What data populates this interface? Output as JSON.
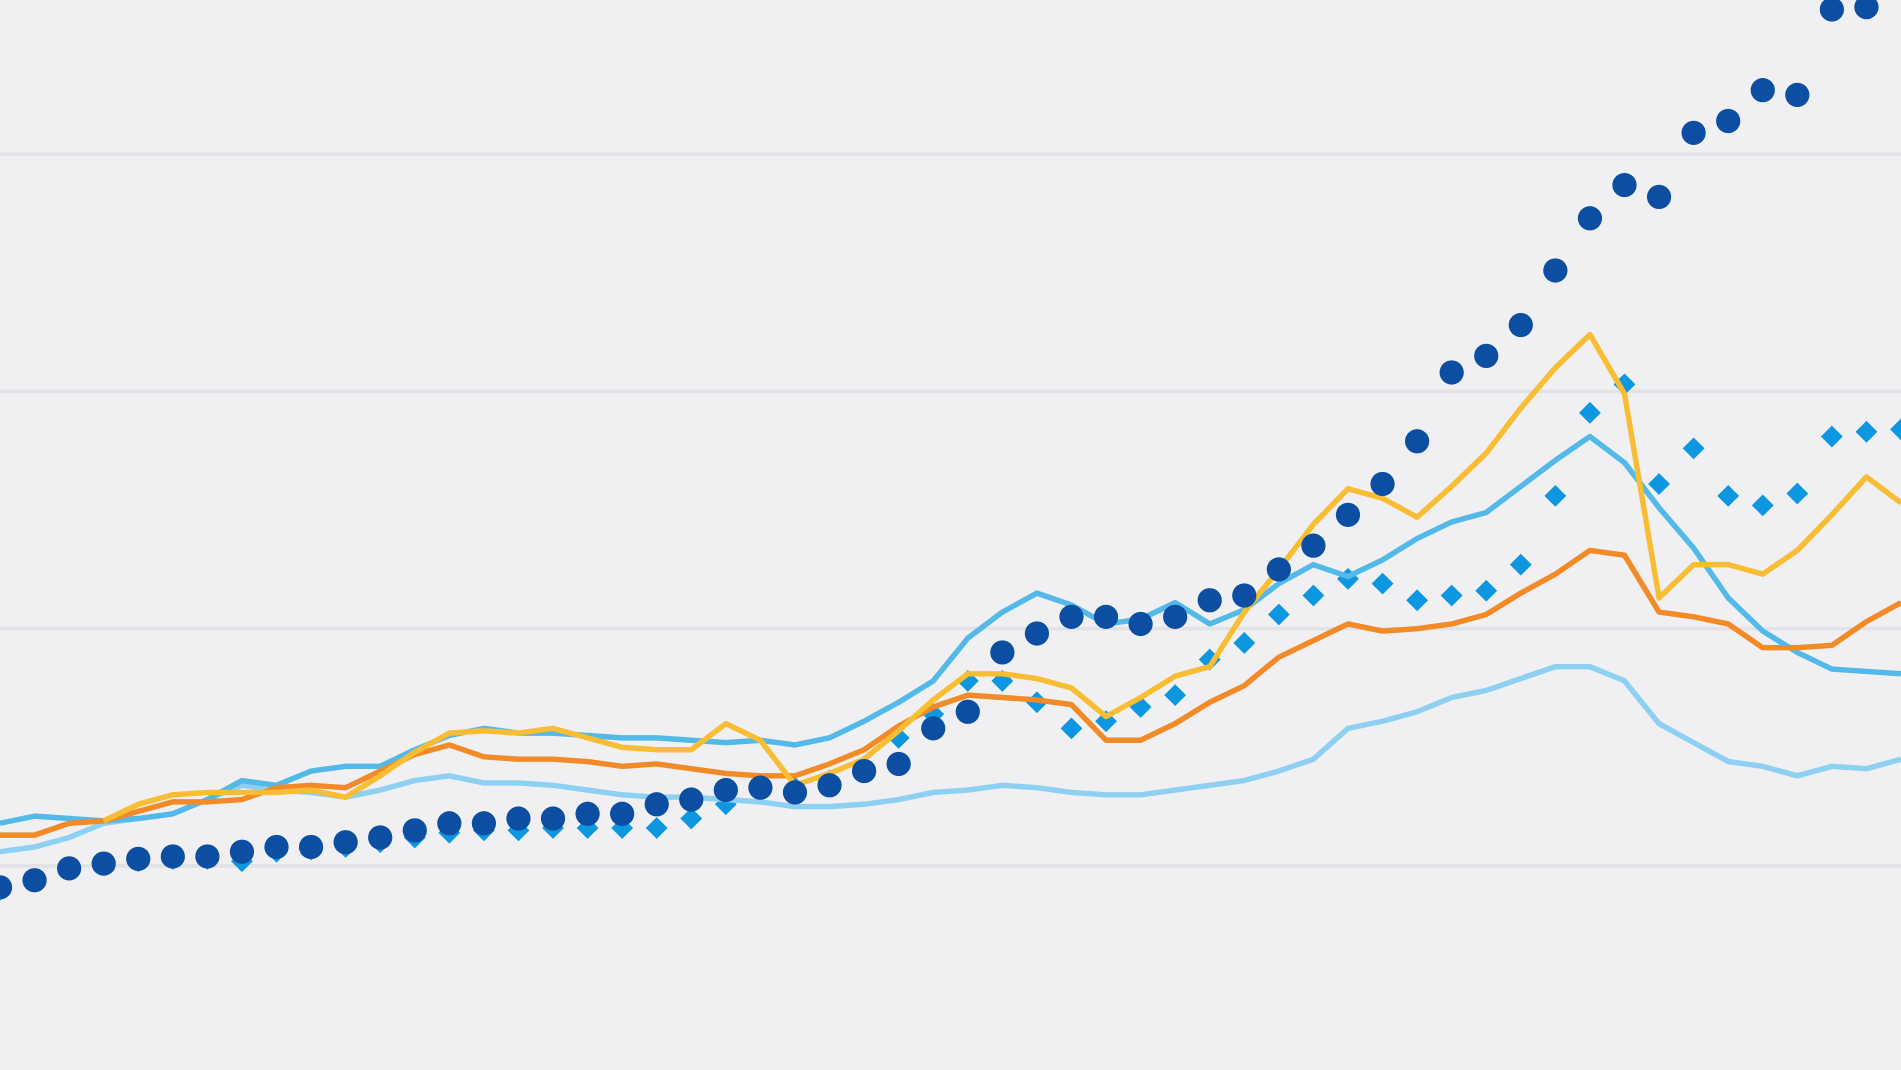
{
  "chart_data": {
    "type": "line",
    "x": [
      0,
      1,
      2,
      3,
      4,
      5,
      6,
      7,
      8,
      9,
      10,
      11,
      12,
      13,
      14,
      15,
      16,
      17,
      18,
      19,
      20,
      21,
      22,
      23,
      24,
      25,
      26,
      27,
      28,
      29,
      30,
      31,
      32,
      33,
      34,
      35,
      36,
      37,
      38,
      39,
      40,
      41,
      42,
      43,
      44,
      45,
      46,
      47,
      48,
      49,
      50,
      51,
      52,
      53,
      54,
      55
    ],
    "xlim": [
      0,
      55
    ],
    "ylim": [
      0.14,
      4.65
    ],
    "yticks": [
      1,
      2,
      3,
      4
    ],
    "grid": true,
    "background": "#f0f0f2",
    "grid_color": "#e3e3e7",
    "series": [
      {
        "style": "diamond",
        "color": "#0d97e0",
        "values": [
          0.9,
          0.94,
          0.99,
          1.01,
          1.02,
          1.03,
          1.03,
          1.02,
          1.06,
          1.07,
          1.08,
          1.1,
          1.12,
          1.14,
          1.15,
          1.15,
          1.16,
          1.16,
          1.16,
          1.16,
          1.2,
          1.26,
          1.32,
          1.33,
          1.36,
          1.42,
          1.54,
          1.64,
          1.78,
          1.78,
          1.69,
          1.58,
          1.61,
          1.67,
          1.72,
          1.87,
          1.94,
          2.06,
          2.14,
          2.21,
          2.19,
          2.12,
          2.14,
          2.16,
          2.27,
          2.56,
          2.91,
          3.03,
          2.61,
          2.76,
          2.56,
          2.52,
          2.57,
          2.81,
          2.83,
          2.84
        ]
      },
      {
        "style": "line",
        "color": "#8dd0f2",
        "values": [
          1.06,
          1.08,
          1.12,
          1.18,
          1.2,
          1.22,
          1.28,
          1.34,
          1.32,
          1.31,
          1.29,
          1.32,
          1.36,
          1.38,
          1.35,
          1.35,
          1.34,
          1.32,
          1.3,
          1.29,
          1.29,
          1.28,
          1.27,
          1.25,
          1.25,
          1.26,
          1.28,
          1.31,
          1.32,
          1.34,
          1.33,
          1.31,
          1.3,
          1.3,
          1.32,
          1.34,
          1.36,
          1.4,
          1.45,
          1.58,
          1.61,
          1.65,
          1.71,
          1.74,
          1.79,
          1.84,
          1.84,
          1.78,
          1.6,
          1.52,
          1.44,
          1.42,
          1.38,
          1.42,
          1.41,
          1.45
        ]
      },
      {
        "style": "line",
        "color": "#52b9e8",
        "values": [
          1.18,
          1.21,
          1.2,
          1.19,
          1.2,
          1.22,
          1.28,
          1.36,
          1.34,
          1.4,
          1.42,
          1.42,
          1.49,
          1.55,
          1.58,
          1.56,
          1.56,
          1.55,
          1.54,
          1.54,
          1.53,
          1.52,
          1.53,
          1.51,
          1.54,
          1.61,
          1.69,
          1.78,
          1.96,
          2.07,
          2.15,
          2.1,
          2.02,
          2.04,
          2.11,
          2.02,
          2.08,
          2.19,
          2.27,
          2.22,
          2.29,
          2.38,
          2.45,
          2.49,
          2.6,
          2.71,
          2.81,
          2.7,
          2.51,
          2.34,
          2.13,
          1.99,
          1.9,
          1.83,
          1.82,
          1.81
        ]
      },
      {
        "style": "line",
        "color": "#f28b27",
        "values": [
          1.13,
          1.13,
          1.18,
          1.19,
          1.23,
          1.27,
          1.27,
          1.28,
          1.33,
          1.34,
          1.33,
          1.4,
          1.47,
          1.51,
          1.46,
          1.45,
          1.45,
          1.44,
          1.42,
          1.43,
          1.41,
          1.39,
          1.38,
          1.38,
          1.43,
          1.49,
          1.59,
          1.67,
          1.72,
          1.71,
          1.7,
          1.68,
          1.53,
          1.53,
          1.6,
          1.69,
          1.76,
          1.88,
          1.95,
          2.02,
          1.99,
          2.0,
          2.02,
          2.06,
          2.15,
          2.23,
          2.33,
          2.31,
          2.07,
          2.05,
          2.02,
          1.92,
          1.92,
          1.93,
          2.03,
          2.11
        ]
      },
      {
        "style": "line",
        "color": "#f8bd32",
        "values": [
          null,
          null,
          null,
          1.19,
          1.26,
          1.3,
          1.31,
          1.31,
          1.31,
          1.32,
          1.29,
          1.38,
          1.48,
          1.56,
          1.57,
          1.56,
          1.58,
          1.54,
          1.5,
          1.49,
          1.49,
          1.6,
          1.53,
          1.34,
          1.39,
          1.45,
          1.57,
          1.7,
          1.81,
          1.81,
          1.79,
          1.75,
          1.63,
          1.71,
          1.8,
          1.84,
          2.07,
          2.25,
          2.44,
          2.59,
          2.55,
          2.47,
          2.6,
          2.74,
          2.93,
          3.1,
          3.24,
          2.99,
          2.13,
          2.27,
          2.27,
          2.23,
          2.33,
          2.48,
          2.64,
          2.53
        ]
      },
      {
        "style": "dot",
        "color": "#0b4ea2",
        "values": [
          0.91,
          0.94,
          0.99,
          1.01,
          1.03,
          1.04,
          1.04,
          1.06,
          1.08,
          1.08,
          1.1,
          1.12,
          1.15,
          1.18,
          1.18,
          1.2,
          1.2,
          1.22,
          1.22,
          1.26,
          1.28,
          1.32,
          1.33,
          1.31,
          1.34,
          1.4,
          1.43,
          1.58,
          1.65,
          1.9,
          1.98,
          2.05,
          2.05,
          2.02,
          2.05,
          2.12,
          2.14,
          2.25,
          2.35,
          2.48,
          2.61,
          2.79,
          3.08,
          3.15,
          3.28,
          3.51,
          3.73,
          3.87,
          3.82,
          4.09,
          4.14,
          4.27,
          4.25,
          4.61,
          4.62,
          null
        ]
      }
    ]
  }
}
